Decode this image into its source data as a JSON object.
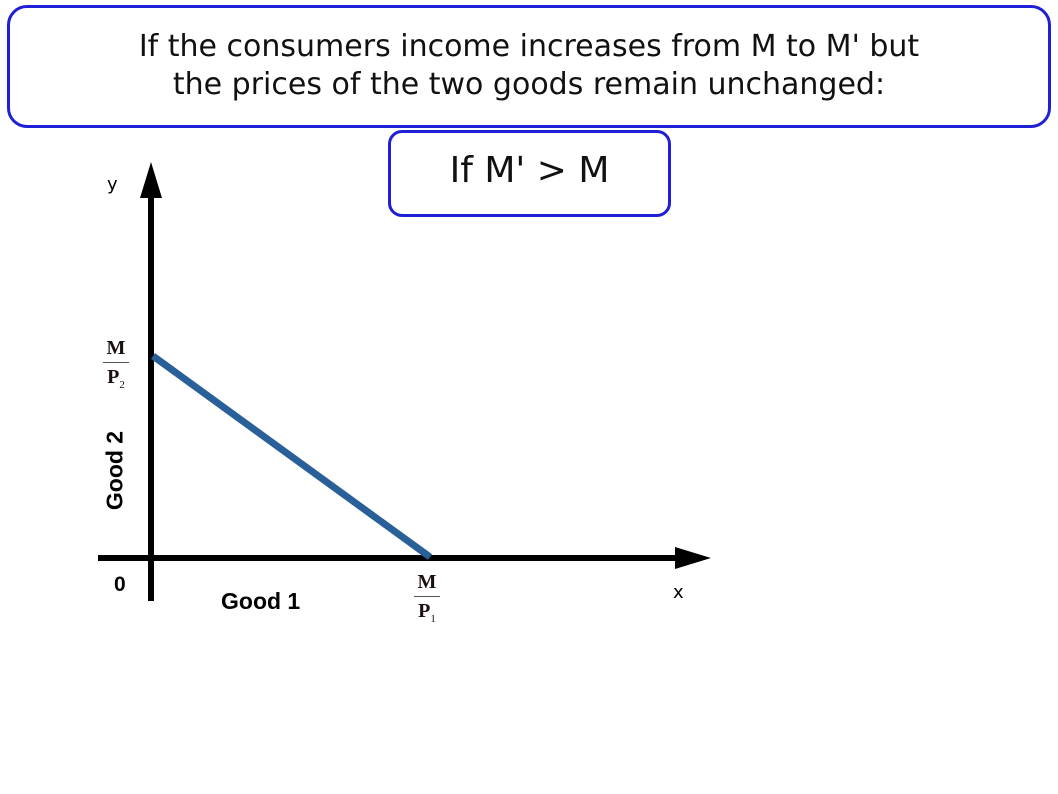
{
  "header": {
    "line1": "If the consumers income increases from M to M' but",
    "line2": "the prices of the two goods remain unchanged:"
  },
  "condition": "If M' > M",
  "diagram": {
    "y_axis_letter": "y",
    "x_axis_letter": "x",
    "y_axis_label": "Good 2",
    "x_axis_label": "Good 1",
    "origin_label": "0",
    "y_intercept": {
      "numerator": "M",
      "denominator": "P",
      "subscript": "2"
    },
    "x_intercept": {
      "numerator": "M",
      "denominator": "P",
      "subscript": "1"
    },
    "budget_line_color": "#2a6099",
    "border_color": "#1f1fd6"
  }
}
